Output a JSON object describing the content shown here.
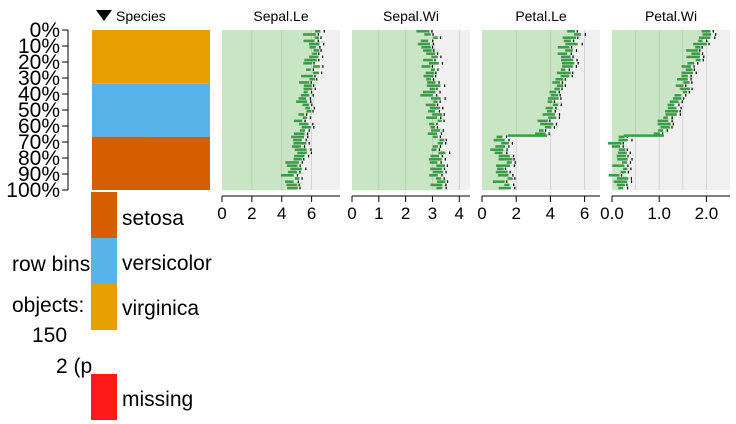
{
  "chart_data": {
    "type": "tableplot",
    "total_rows": 150,
    "y_ticks": [
      "0%",
      "10%",
      "20%",
      "30%",
      "40%",
      "50%",
      "60%",
      "70%",
      "80%",
      "90%",
      "100%"
    ],
    "categorical": {
      "title": "Species",
      "sorted": true,
      "levels": [
        {
          "name": "virginica",
          "color": "#E69F00"
        },
        {
          "name": "versicolor",
          "color": "#56B4E9"
        },
        {
          "name": "setosa",
          "color": "#D55E00"
        }
      ],
      "missing": {
        "label": "missing",
        "color": "#FF1A1A"
      }
    },
    "panels": [
      {
        "title": "Sepal.Le",
        "xmin": 0,
        "xmax": 7.9,
        "ticks": [
          0,
          2,
          4,
          6
        ],
        "tick_labels": [
          "0",
          "2",
          "4",
          "6"
        ],
        "gridlines": [
          2,
          4,
          6
        ],
        "start": 6.6,
        "end": 5.0
      },
      {
        "title": "Sepal.Wi",
        "xmin": 0,
        "xmax": 4.4,
        "ticks": [
          0,
          1,
          2,
          3,
          4
        ],
        "tick_labels": [
          "0",
          "1",
          "2",
          "3",
          "4"
        ],
        "gridlines": [
          1,
          2,
          3,
          4
        ],
        "start": 3.0,
        "end": 3.4
      },
      {
        "title": "Petal.Le",
        "xmin": 0,
        "xmax": 6.9,
        "ticks": [
          0,
          2,
          4,
          6
        ],
        "tick_labels": [
          "0",
          "2",
          "4",
          "6"
        ],
        "gridlines": [
          2,
          4,
          6
        ],
        "start": 5.7,
        "end": 1.5,
        "break_at": 0.66,
        "before_break_end": 3.8
      },
      {
        "title": "Petal.Wi",
        "xmin": 0,
        "xmax": 2.5,
        "ticks": [
          0,
          1,
          2
        ],
        "tick_labels": [
          "0.0",
          "1.0",
          "2.0"
        ],
        "gridlines": [
          0.5,
          1,
          1.5,
          2
        ],
        "start": 2.1,
        "end": 0.25,
        "break_at": 0.66,
        "before_break_end": 1.1
      }
    ],
    "legend": {
      "row_bins_label": "row bins",
      "objects_label": "objects:",
      "objects_value": "150",
      "extra": "2 (p"
    }
  }
}
